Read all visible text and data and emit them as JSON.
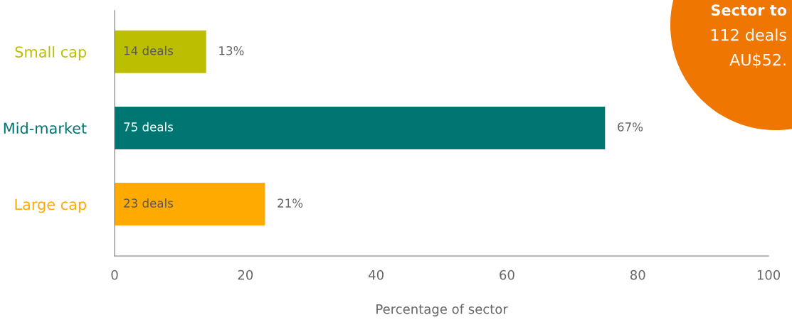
{
  "chart_data": {
    "type": "bar",
    "orientation": "horizontal",
    "xlabel": "Percentage of sector",
    "categories": [
      "Small cap",
      "Mid-market",
      "Large cap"
    ],
    "values": [
      14,
      75,
      23
    ],
    "colors": [
      "#bcbf00",
      "#007672",
      "#ffaa00"
    ],
    "value_labels": [
      "14 deals",
      "75 deals",
      "23 deals"
    ],
    "xlim": [
      0,
      100
    ],
    "xticks": [
      0,
      20,
      40,
      60,
      80,
      100
    ],
    "grid": false,
    "annotations": [
      {
        "text": "13%",
        "x": 14,
        "y": "Small cap"
      },
      {
        "text": "67%",
        "x": 75,
        "y": "Mid-market"
      },
      {
        "text": "21%",
        "x": 23,
        "y": "Large cap"
      },
      "Sector to",
      "112 deals",
      "AU$52."
    ]
  }
}
